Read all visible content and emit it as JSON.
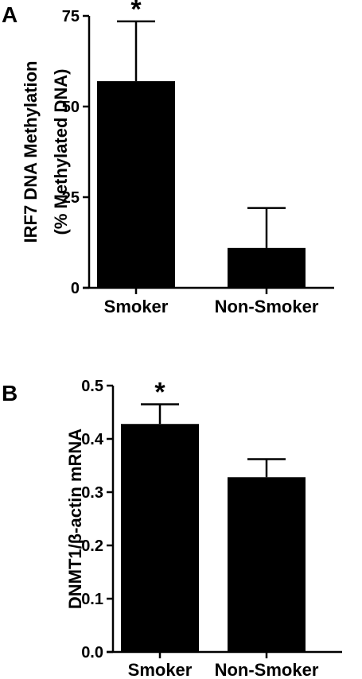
{
  "chart_data": [
    {
      "panel": "A",
      "type": "bar",
      "categories": [
        "Smoker",
        "Non-Smoker"
      ],
      "values": [
        57,
        11
      ],
      "errors": [
        16.5,
        11
      ],
      "significance": [
        "*",
        ""
      ],
      "ylabel_lines": [
        "IRF7 DNA Methylation",
        "(% Methylated DNA)"
      ],
      "ylim": [
        0,
        75
      ],
      "yticks": [
        0,
        25,
        50,
        75
      ],
      "ytick_labels": [
        "0",
        "25",
        "50",
        "75"
      ],
      "grid": false,
      "bar_color": "#000000"
    },
    {
      "panel": "B",
      "type": "bar",
      "categories": [
        "Smoker",
        "Non-Smoker"
      ],
      "values": [
        0.428,
        0.328
      ],
      "errors": [
        0.037,
        0.034
      ],
      "significance": [
        "*",
        ""
      ],
      "ylabel_lines": [
        "DNMT1/β-actin mRNA"
      ],
      "ylim": [
        0,
        0.5
      ],
      "yticks": [
        0,
        0.1,
        0.2,
        0.3,
        0.4,
        0.5
      ],
      "ytick_labels": [
        "0.0",
        "0.1",
        "0.2",
        "0.3",
        "0.4",
        "0.5"
      ],
      "grid": false,
      "bar_color": "#000000"
    }
  ]
}
